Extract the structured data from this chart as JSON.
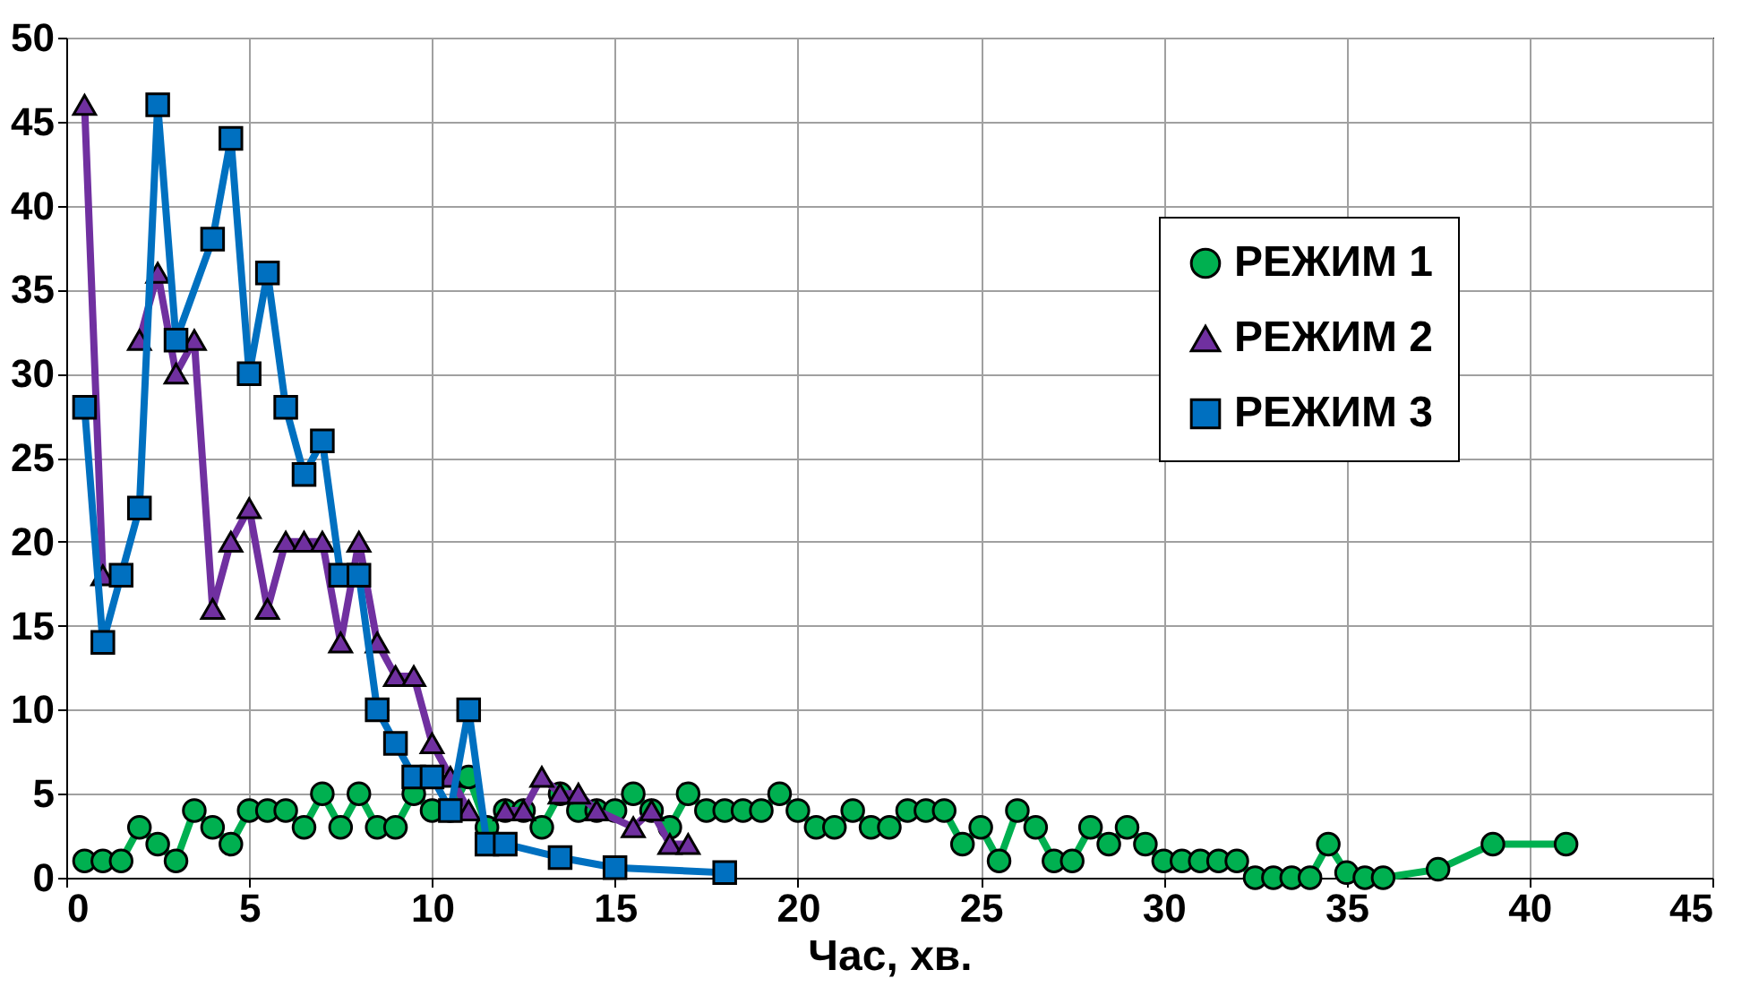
{
  "chart_data": {
    "type": "line",
    "xlabel": "Час, хв.",
    "xlim": [
      0,
      45
    ],
    "xticks": [
      0,
      5,
      10,
      15,
      20,
      25,
      30,
      35,
      40,
      45
    ],
    "ylim": [
      0,
      50
    ],
    "yticks": [
      0,
      5,
      10,
      15,
      20,
      25,
      30,
      35,
      40,
      45,
      50
    ],
    "grid": true,
    "legend": "right",
    "series": [
      {
        "name": "РЕЖИМ 1",
        "color": "#00b050",
        "marker": "circle",
        "x": [
          0.5,
          1,
          1.5,
          2,
          2.5,
          3,
          3.5,
          4,
          4.5,
          5,
          5.5,
          6,
          6.5,
          7,
          7.5,
          8,
          8.5,
          9,
          9.5,
          10,
          10.5,
          11,
          11.5,
          12,
          12.5,
          13,
          13.5,
          14,
          14.5,
          15,
          15.5,
          16,
          16.5,
          17,
          17.5,
          18,
          18.5,
          19,
          19.5,
          20,
          20.5,
          21,
          21.5,
          22,
          22.5,
          23,
          23.5,
          24,
          24.5,
          25,
          25.5,
          26,
          26.5,
          27,
          27.5,
          28,
          28.5,
          29,
          29.5,
          30,
          30.5,
          31,
          31.5,
          32,
          32.5,
          33,
          33.5,
          34,
          34.5,
          35,
          35.5,
          36,
          37.5,
          39,
          41
        ],
        "values": [
          1,
          1,
          1,
          3,
          2,
          1,
          4,
          3,
          2,
          4,
          4,
          4,
          3,
          5,
          3,
          5,
          3,
          3,
          5,
          4,
          4,
          6,
          3,
          4,
          4,
          3,
          5,
          4,
          4,
          4,
          5,
          4,
          3,
          5,
          4,
          4,
          4,
          4,
          5,
          4,
          3,
          3,
          4,
          3,
          3,
          4,
          4,
          4,
          2,
          3,
          1,
          4,
          3,
          1,
          1,
          3,
          2,
          3,
          2,
          1,
          1,
          1,
          1,
          1,
          0,
          0,
          0,
          0,
          2,
          0.3,
          0,
          0,
          0.5,
          2,
          2
        ]
      },
      {
        "name": "РЕЖИМ 2",
        "color": "#7030a0",
        "marker": "triangle",
        "x": [
          0.5,
          1,
          1.5,
          2,
          2.5,
          3,
          3.5,
          4,
          4.5,
          5,
          5.5,
          6,
          6.5,
          7,
          7.5,
          8,
          8.5,
          9,
          9.5,
          10,
          10.5,
          11,
          11.5,
          12,
          12.5,
          13,
          13.5,
          14,
          14.5,
          15.5,
          16,
          16.5,
          17
        ],
        "values": [
          46,
          18,
          null,
          32,
          36,
          30,
          32,
          16,
          20,
          22,
          16,
          20,
          20,
          20,
          14,
          20,
          14,
          12,
          12,
          8,
          6,
          4,
          null,
          4,
          4,
          6,
          5,
          5,
          4,
          3,
          4,
          2,
          2
        ]
      },
      {
        "name": "РЕЖИМ 3",
        "color": "#0070c0",
        "marker": "square",
        "x": [
          0.5,
          1,
          1.5,
          2,
          2.5,
          3,
          4,
          4.5,
          5,
          5.5,
          6,
          6.5,
          7,
          7.5,
          8,
          8.5,
          9,
          9.5,
          10,
          10.5,
          11,
          11.5,
          12,
          13.5,
          15,
          18
        ],
        "values": [
          28,
          14,
          18,
          22,
          46,
          32,
          38,
          44,
          30,
          36,
          28,
          24,
          26,
          18,
          18,
          10,
          8,
          6,
          6,
          4,
          10,
          2,
          2,
          1.2,
          0.6,
          0.3
        ]
      }
    ]
  }
}
